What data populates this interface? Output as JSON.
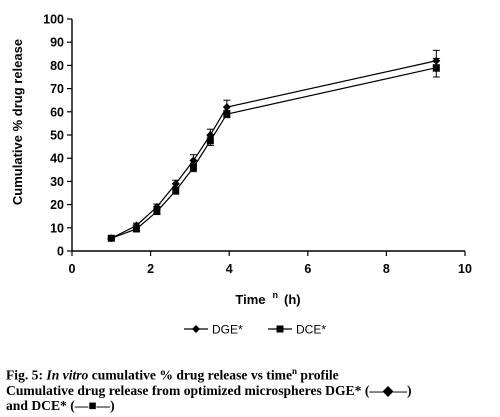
{
  "chart_data": {
    "type": "line",
    "xlabel": "Time",
    "xlabel_sup": "n",
    "xlabel_unit": "(h)",
    "ylabel": "Cumulative % drug release",
    "xlim": [
      0,
      10
    ],
    "ylim": [
      0,
      100
    ],
    "x_ticks": [
      "0",
      "2",
      "4",
      "6",
      "8",
      "10"
    ],
    "y_ticks": [
      "0",
      "10",
      "20",
      "30",
      "40",
      "50",
      "60",
      "70",
      "80",
      "90",
      "100"
    ],
    "grid": false,
    "legend_position": "bottom",
    "series": [
      {
        "name": "DGE*",
        "marker": "diamond",
        "color": "#000000",
        "points": [
          {
            "x": 1.0,
            "y": 5.5,
            "err": 0.6
          },
          {
            "x": 1.64,
            "y": 11,
            "err": 1
          },
          {
            "x": 2.16,
            "y": 19,
            "err": 1.2
          },
          {
            "x": 2.64,
            "y": 29,
            "err": 1.5
          },
          {
            "x": 3.09,
            "y": 39,
            "err": 2.5
          },
          {
            "x": 3.52,
            "y": 50,
            "err": 2.5
          },
          {
            "x": 3.94,
            "y": 62,
            "err": 3
          },
          {
            "x": 9.27,
            "y": 82,
            "err": 4.5
          }
        ]
      },
      {
        "name": "DCE*",
        "marker": "square",
        "color": "#000000",
        "points": [
          {
            "x": 1.0,
            "y": 5.5,
            "err": 0.6
          },
          {
            "x": 1.64,
            "y": 9.5,
            "err": 1
          },
          {
            "x": 2.16,
            "y": 17,
            "err": 1.2
          },
          {
            "x": 2.64,
            "y": 26,
            "err": 1.5
          },
          {
            "x": 3.09,
            "y": 36,
            "err": 1.8
          },
          {
            "x": 3.52,
            "y": 47.5,
            "err": 2
          },
          {
            "x": 3.94,
            "y": 59,
            "err": 1.5
          },
          {
            "x": 9.27,
            "y": 79,
            "err": 4
          }
        ]
      }
    ]
  },
  "caption": {
    "fig_label": "Fig. 5:",
    "title_italic": "In vitro",
    "title_rest": "cumulative % drug release vs time",
    "title_sup": "n",
    "title_end": "profile",
    "line2": "Cumulative drug release from optimized microspheres DGE* (—◆—)",
    "line3": "and DCE* (—■—)"
  }
}
